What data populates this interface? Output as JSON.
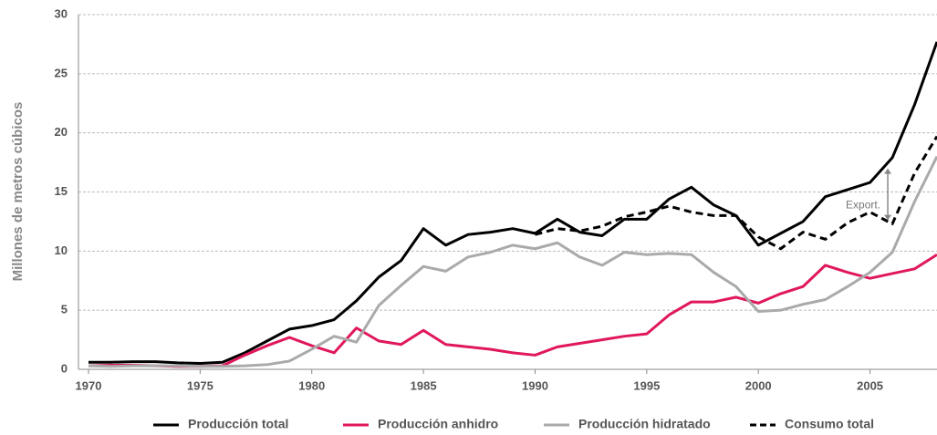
{
  "chart_data": {
    "type": "line",
    "ylabel": "Millones de metros cúbicos",
    "x": [
      1970,
      1971,
      1972,
      1973,
      1974,
      1975,
      1976,
      1977,
      1978,
      1979,
      1980,
      1981,
      1982,
      1983,
      1984,
      1985,
      1986,
      1987,
      1988,
      1989,
      1990,
      1991,
      1992,
      1993,
      1994,
      1995,
      1996,
      1997,
      1998,
      1999,
      2000,
      2001,
      2002,
      2003,
      2004,
      2005,
      2006,
      2007,
      2008
    ],
    "xlim": [
      1970,
      2008
    ],
    "xticks": [
      1970,
      1975,
      1980,
      1985,
      1990,
      1995,
      2000,
      2005
    ],
    "ylim": [
      0,
      30
    ],
    "yticks": [
      0,
      5,
      10,
      15,
      20,
      25,
      30
    ],
    "grid": true,
    "series": [
      {
        "name": "Producción total",
        "color": "#000000",
        "dash": false,
        "values": [
          0.6,
          0.6,
          0.65,
          0.65,
          0.55,
          0.5,
          0.6,
          1.4,
          2.4,
          3.4,
          3.7,
          4.2,
          5.8,
          7.8,
          9.2,
          11.9,
          10.5,
          11.4,
          11.6,
          11.9,
          11.5,
          12.7,
          11.6,
          11.3,
          12.7,
          12.7,
          14.4,
          15.4,
          13.9,
          13.0,
          10.5,
          11.5,
          12.5,
          14.6,
          15.2,
          15.8,
          17.9,
          22.4,
          27.7
        ]
      },
      {
        "name": "Producción anhidro",
        "color": "#e0185a",
        "dash": false,
        "values": [
          0.3,
          0.35,
          0.35,
          0.3,
          0.25,
          0.25,
          0.3,
          1.2,
          2.0,
          2.7,
          2.0,
          1.4,
          3.5,
          2.4,
          2.1,
          3.3,
          2.1,
          1.9,
          1.7,
          1.4,
          1.2,
          1.9,
          2.2,
          2.5,
          2.8,
          3.0,
          4.6,
          5.7,
          5.7,
          6.1,
          5.6,
          6.4,
          7.0,
          8.8,
          8.2,
          7.7,
          8.1,
          8.5,
          9.7
        ]
      },
      {
        "name": "Producción hidratado",
        "color": "#aaaaaa",
        "dash": false,
        "values": [
          0.3,
          0.25,
          0.3,
          0.3,
          0.3,
          0.25,
          0.25,
          0.3,
          0.4,
          0.7,
          1.7,
          2.8,
          2.3,
          5.4,
          7.1,
          8.7,
          8.3,
          9.5,
          9.9,
          10.5,
          10.2,
          10.7,
          9.5,
          8.8,
          9.9,
          9.7,
          9.8,
          9.7,
          8.2,
          7.0,
          4.9,
          5.0,
          5.5,
          5.9,
          7.0,
          8.2,
          9.9,
          14.2,
          18.0
        ]
      },
      {
        "name": "Consumo total",
        "color": "#000000",
        "dash": true,
        "values": [
          null,
          null,
          null,
          null,
          null,
          null,
          null,
          null,
          null,
          null,
          null,
          null,
          null,
          null,
          null,
          null,
          null,
          null,
          null,
          null,
          11.4,
          11.9,
          11.7,
          12.1,
          12.9,
          13.3,
          13.8,
          13.3,
          13.0,
          13.0,
          11.2,
          10.2,
          11.6,
          11.0,
          12.4,
          13.3,
          12.3,
          16.6,
          19.7
        ]
      }
    ],
    "annotation": {
      "text": "Export.",
      "x": 2006,
      "y_from": 12.6,
      "y_to": 17.0
    }
  }
}
